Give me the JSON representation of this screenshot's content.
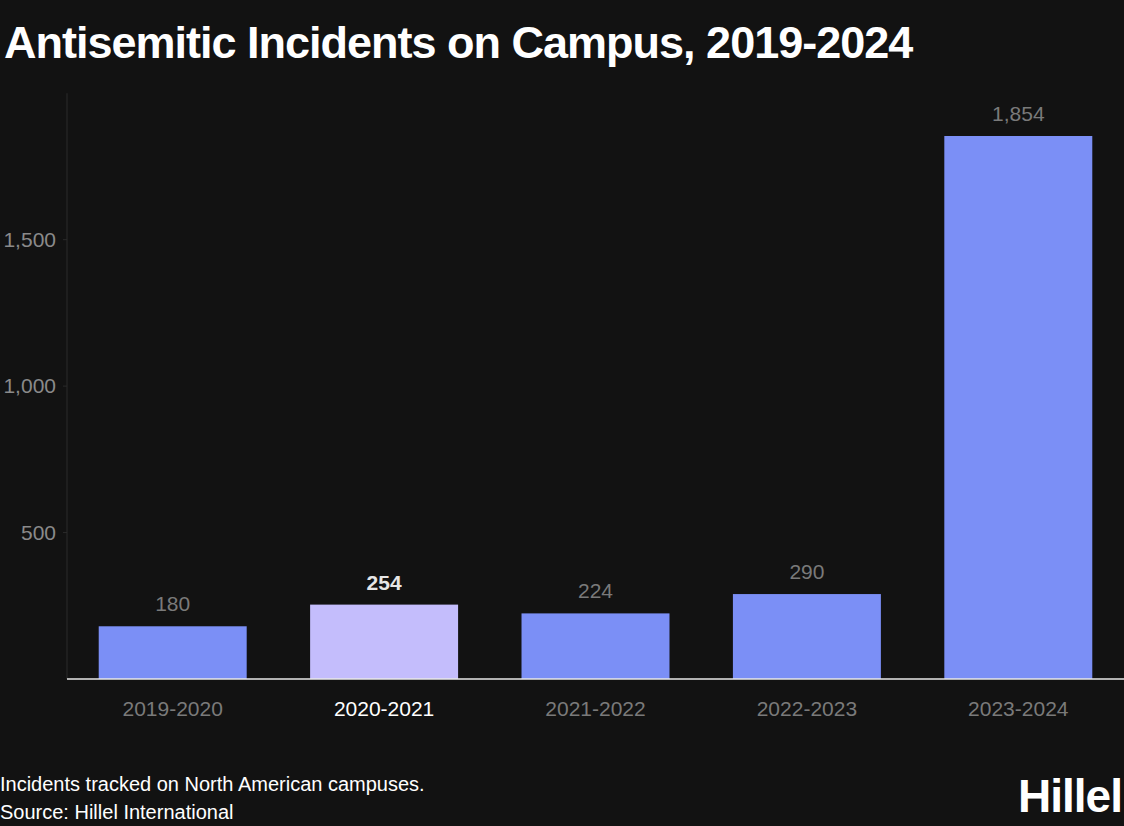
{
  "chart_data": {
    "type": "bar",
    "title": "Antisemitic Incidents on Campus, 2019-2024",
    "categories": [
      "2019-2020",
      "2020-2021",
      "2021-2022",
      "2022-2023",
      "2023-2024"
    ],
    "values": [
      180,
      254,
      224,
      290,
      1854
    ],
    "value_labels": [
      "180",
      "254",
      "224",
      "290",
      "1,854"
    ],
    "colors": [
      "#7b8ff6",
      "#c4bdfc",
      "#7b8ff6",
      "#7b8ff6",
      "#7b8ff6"
    ],
    "ylim": [
      0,
      2000
    ],
    "yticks": [
      500,
      {
        "value": 1000,
        "label": "1,000"
      },
      {
        "value": 1500,
        "label": "1,500"
      }
    ],
    "grid": false,
    "data_labels": true,
    "note": "Incidents tracked on North American campuses.",
    "source": "Source: Hillel International",
    "logo": "Hillel"
  }
}
